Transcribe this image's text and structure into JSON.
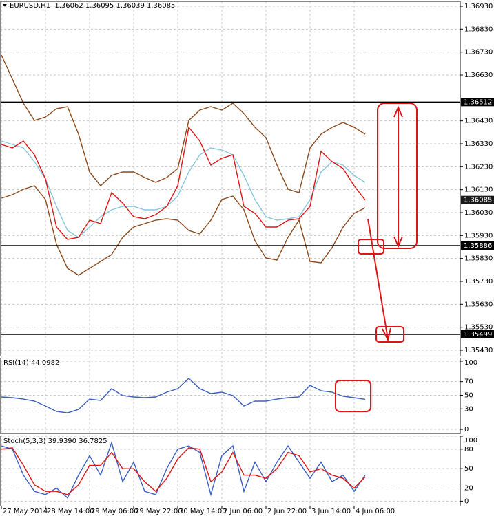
{
  "chart_data": [
    {
      "type": "line",
      "header": {
        "symbol": "EURUSD,H1",
        "ohlc": [
          1.36062,
          1.36095,
          1.36039,
          1.36085
        ]
      },
      "categories": [
        "27 May 2014",
        null,
        null,
        null,
        "28 May 14:00",
        null,
        null,
        null,
        "29 May 06:00",
        null,
        null,
        null,
        "29 May 22:00",
        null,
        null,
        null,
        "30 May 14:00",
        null,
        null,
        null,
        "2 Jun 06:00",
        null,
        null,
        null,
        "2 Jun 22:00",
        null,
        null,
        null,
        "3 Jun 14:00",
        null,
        null,
        null,
        "4 Jun 06:00",
        null
      ],
      "xlim": [
        -0.125,
        41.625
      ],
      "ylim": [
        1.35406,
        1.36951
      ],
      "yticks": [
        {
          "value": 1.3693,
          "label": "1.36930"
        },
        {
          "value": 1.3683,
          "label": "1.36830"
        },
        {
          "value": 1.3673,
          "label": "1.36730"
        },
        {
          "value": 1.3663,
          "label": "1.36630"
        },
        {
          "value": 1.3643,
          "label": "1.36430"
        },
        {
          "value": 1.3633,
          "label": "1.36330"
        },
        {
          "value": 1.3623,
          "label": "1.36230"
        },
        {
          "value": 1.3613,
          "label": "1.36130"
        },
        {
          "value": 1.3603,
          "label": "1.36030"
        },
        {
          "value": 1.3593,
          "label": "1.35930"
        },
        {
          "value": 1.3583,
          "label": "1.35830"
        },
        {
          "value": 1.3573,
          "label": "1.35730"
        },
        {
          "value": 1.3563,
          "label": "1.35630"
        },
        {
          "value": 1.3553,
          "label": "1.35530"
        },
        {
          "value": 1.3543,
          "label": "1.35430"
        }
      ],
      "grid": true,
      "levels": [
        1.36512,
        1.35886,
        1.35499
      ],
      "last_price": 1.36085,
      "series": [
        {
          "color": "#8c4a1c",
          "values": [
            1.36717,
            1.36612,
            1.36507,
            1.36432,
            1.36447,
            1.36483,
            1.36492,
            1.36372,
            1.36207,
            1.36147,
            1.36192,
            1.36207,
            1.36207,
            1.36183,
            1.36162,
            1.36183,
            1.36222,
            1.36432,
            1.36477,
            1.36492,
            1.36477,
            1.36507,
            1.36462,
            1.36402,
            1.36357,
            1.36237,
            1.36132,
            1.36117,
            1.36312,
            1.36372,
            1.36402,
            1.36423,
            1.36402,
            1.36372
          ]
        },
        {
          "color": "#8c4a1c",
          "values": [
            1.36093,
            1.36108,
            1.36132,
            1.36147,
            1.36087,
            1.35892,
            1.35787,
            1.35757,
            1.35787,
            1.35817,
            1.35847,
            1.35922,
            1.35967,
            1.35982,
            1.35997,
            1.36003,
            1.35997,
            1.35952,
            1.35937,
            1.35997,
            1.36087,
            1.36102,
            1.36042,
            1.35907,
            1.35832,
            1.35823,
            1.35922,
            1.35997,
            1.35817,
            1.35811,
            1.35877,
            1.35967,
            1.36027,
            1.36051
          ]
        },
        {
          "color": "#87c6df",
          "values": [
            1.36342,
            1.36327,
            1.36312,
            1.36252,
            1.36177,
            1.36057,
            1.35952,
            1.35922,
            1.35967,
            1.36012,
            1.36042,
            1.36057,
            1.36057,
            1.36042,
            1.36042,
            1.36057,
            1.36102,
            1.36207,
            1.36282,
            1.36312,
            1.36303,
            1.36282,
            1.36192,
            1.36087,
            1.36012,
            1.35997,
            1.36003,
            1.36012,
            1.36087,
            1.36207,
            1.36252,
            1.36237,
            1.36192,
            1.36162
          ]
        },
        {
          "color": "#e01414",
          "values": [
            1.36327,
            1.36312,
            1.36342,
            1.36282,
            1.36177,
            1.35967,
            1.35913,
            1.35922,
            1.35997,
            1.35982,
            1.36117,
            1.36072,
            1.36012,
            1.36003,
            1.36021,
            1.36057,
            1.36147,
            1.36402,
            1.36342,
            1.36237,
            1.36267,
            1.36282,
            1.36057,
            1.36027,
            1.35967,
            1.35967,
            1.35997,
            1.36003,
            1.36057,
            1.36297,
            1.36252,
            1.36222,
            1.36147,
            1.36085
          ]
        }
      ]
    },
    {
      "type": "line",
      "title": "RSI(14)",
      "readout": [
        44.0982
      ],
      "ylim": [
        -6,
        105
      ],
      "yticks": [
        0,
        30,
        50,
        70,
        100
      ],
      "grid": true,
      "series": [
        {
          "color": "#3a5fbf",
          "values": [
            47.5,
            46.5,
            44.4,
            41.4,
            34.3,
            26.3,
            24.2,
            29.3,
            44.4,
            42.4,
            59.6,
            49.5,
            47.5,
            46.5,
            47.5,
            54.5,
            59.6,
            74.7,
            59.6,
            52.5,
            54.5,
            49.5,
            34.3,
            41.4,
            41.4,
            44.4,
            46.5,
            47.5,
            64.6,
            56.6,
            54.5,
            48.5,
            46.5,
            44.1
          ]
        }
      ]
    },
    {
      "type": "line",
      "title": "Stoch(5,3,3)",
      "readout": [
        {
          "value": 39.939,
          "label": "39.9390"
        },
        36.7825
      ],
      "ylim": [
        -7,
        101
      ],
      "yticks": [
        0,
        20,
        50,
        80,
        100
      ],
      "grid": true,
      "series": [
        {
          "color": "#3a5fbf",
          "values": [
            85,
            80,
            40,
            15,
            10,
            20,
            5,
            40,
            70,
            40,
            90,
            30,
            60,
            15,
            10,
            50,
            80,
            85,
            75,
            10,
            70,
            85,
            15,
            60,
            30,
            60,
            85,
            60,
            35,
            60,
            30,
            40,
            15,
            40
          ]
        },
        {
          "color": "#e01414",
          "values": [
            80,
            82,
            55,
            25,
            15,
            15,
            10,
            25,
            55,
            55,
            75,
            50,
            50,
            30,
            15,
            35,
            65,
            82,
            80,
            30,
            45,
            75,
            40,
            40,
            35,
            50,
            75,
            70,
            45,
            50,
            40,
            35,
            20,
            37
          ]
        }
      ]
    }
  ]
}
